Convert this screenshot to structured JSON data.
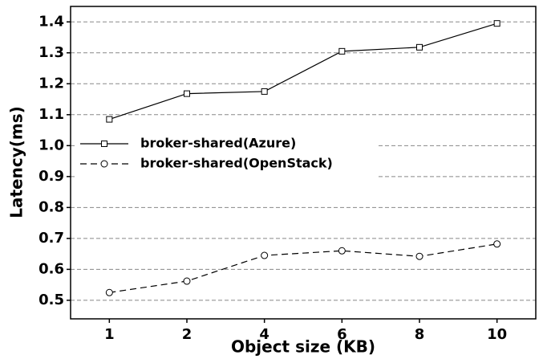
{
  "chart_data": {
    "type": "line",
    "x_label": "Object size (KB)",
    "y_label": "Latency(ms)",
    "categories": [
      "1",
      "2",
      "4",
      "6",
      "8",
      "10"
    ],
    "series": [
      {
        "name": "broker-shared(Azure)",
        "color": "#000000",
        "marker": "square",
        "linestyle": "solid",
        "values": [
          1.085,
          1.168,
          1.175,
          1.305,
          1.318,
          1.395
        ]
      },
      {
        "name": "broker-shared(OpenStack)",
        "color": "#000000",
        "marker": "circle",
        "linestyle": "dashed",
        "values": [
          0.525,
          0.562,
          0.645,
          0.66,
          0.642,
          0.682
        ]
      }
    ],
    "ylim": [
      0.44,
      1.45
    ],
    "yticks": [
      0.5,
      0.6,
      0.7,
      0.8,
      0.9,
      {
        "value": 1,
        "label": "1.0"
      },
      1.1,
      1.2,
      1.3,
      1.4
    ],
    "grid": true,
    "legend": "center left"
  }
}
